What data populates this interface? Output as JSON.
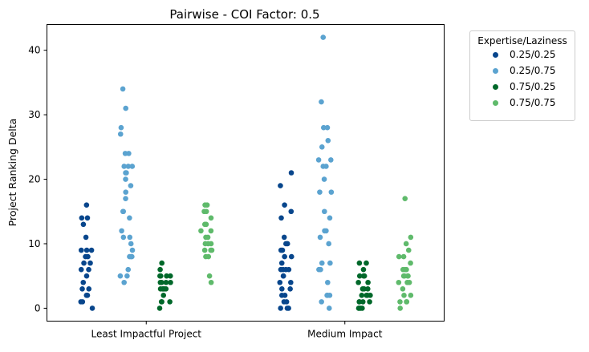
{
  "chart_data": {
    "type": "scatter",
    "subtype": "stripplot",
    "title": "Pairwise - COI Factor: 0.5",
    "xlabel": "",
    "ylabel": "Project Ranking Delta",
    "categories": [
      "Least Impactful Project",
      "Medium Impact"
    ],
    "ylim": [
      -2,
      44
    ],
    "yticks": [
      0,
      10,
      20,
      30,
      40
    ],
    "grid": false,
    "legend": {
      "title": "Expertise/Laziness",
      "placement": "outside-right"
    },
    "series": [
      {
        "name": "0.25/0.25",
        "color": "#08468c",
        "values": [
          [
            16,
            14,
            14,
            13,
            11,
            9,
            9,
            9,
            8,
            8,
            7,
            7,
            6,
            6,
            5,
            4,
            3,
            3,
            2,
            2,
            1,
            1,
            0
          ],
          [
            21,
            19,
            16,
            15,
            14,
            11,
            10,
            10,
            9,
            9,
            8,
            8,
            7,
            6,
            6,
            6,
            6,
            5,
            5,
            4,
            4,
            3,
            3,
            2,
            2,
            1,
            1,
            0,
            0,
            0
          ]
        ]
      },
      {
        "name": "0.25/0.75",
        "color": "#5ba3d0",
        "values": [
          [
            34,
            31,
            28,
            27,
            24,
            24,
            22,
            22,
            22,
            21,
            21,
            20,
            19,
            18,
            17,
            15,
            15,
            14,
            12,
            11,
            11,
            10,
            9,
            8,
            8,
            8,
            6,
            5,
            5,
            4
          ],
          [
            42,
            32,
            28,
            28,
            26,
            25,
            23,
            23,
            22,
            22,
            20,
            18,
            18,
            15,
            14,
            12,
            12,
            11,
            10,
            7,
            7,
            6,
            6,
            4,
            2,
            2,
            2,
            1,
            0
          ]
        ]
      },
      {
        "name": "0.75/0.25",
        "color": "#00682a",
        "values": [
          [
            7,
            6,
            5,
            5,
            5,
            5,
            4,
            4,
            4,
            4,
            3,
            3,
            3,
            3,
            3,
            2,
            1,
            1,
            1,
            0
          ],
          [
            7,
            7,
            6,
            5,
            5,
            5,
            4,
            4,
            3,
            3,
            3,
            2,
            2,
            2,
            2,
            1,
            1,
            1,
            1,
            0,
            0,
            0,
            0
          ]
        ]
      },
      {
        "name": "0.75/0.75",
        "color": "#5fba6b",
        "values": [
          [
            16,
            16,
            15,
            15,
            14,
            13,
            13,
            12,
            12,
            11,
            11,
            10,
            10,
            10,
            9,
            9,
            9,
            8,
            8,
            5,
            4
          ],
          [
            17,
            11,
            10,
            9,
            8,
            8,
            7,
            6,
            6,
            6,
            5,
            5,
            5,
            5,
            4,
            4,
            4,
            3,
            2,
            2,
            1,
            1,
            1,
            0
          ]
        ]
      }
    ]
  }
}
